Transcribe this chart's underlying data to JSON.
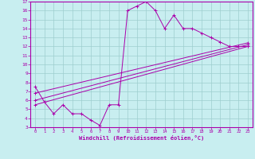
{
  "xlabel": "Windchill (Refroidissement éolien,°C)",
  "xlim": [
    -0.5,
    23.5
  ],
  "ylim": [
    3,
    17
  ],
  "xticks": [
    0,
    1,
    2,
    3,
    4,
    5,
    6,
    7,
    8,
    9,
    10,
    11,
    12,
    13,
    14,
    15,
    16,
    17,
    18,
    19,
    20,
    21,
    22,
    23
  ],
  "yticks": [
    3,
    4,
    5,
    6,
    7,
    8,
    9,
    10,
    11,
    12,
    13,
    14,
    15,
    16,
    17
  ],
  "bg_color": "#c8eef0",
  "line_color": "#aa00aa",
  "line1_x": [
    0,
    1,
    2,
    3,
    4,
    5,
    6,
    7,
    8,
    9,
    10,
    11,
    12,
    13,
    14,
    15,
    16,
    17,
    18,
    19,
    20,
    21,
    22,
    23
  ],
  "line1_y": [
    7.5,
    5.8,
    4.5,
    5.5,
    4.5,
    4.5,
    3.8,
    3.2,
    5.5,
    5.5,
    16.0,
    16.5,
    17.0,
    16.0,
    14.0,
    15.5,
    14.0,
    14.0,
    13.5,
    13.0,
    12.5,
    12.0,
    12.0,
    12.0
  ],
  "line2_x": [
    0,
    23
  ],
  "line2_y": [
    5.5,
    12.0
  ],
  "line3_x": [
    0,
    23
  ],
  "line3_y": [
    6.0,
    12.2
  ],
  "line4_x": [
    0,
    23
  ],
  "line4_y": [
    6.8,
    12.4
  ],
  "grid_color": "#9ecece",
  "marker": "+"
}
